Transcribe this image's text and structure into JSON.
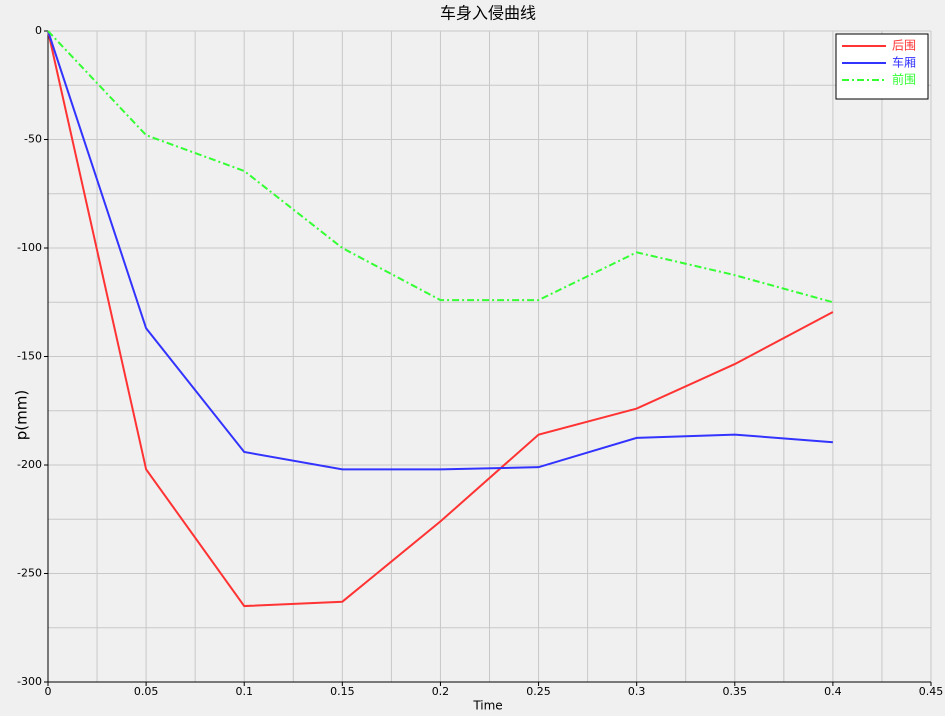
{
  "chart_data": {
    "type": "line",
    "title": "车身入侵曲线",
    "x_label": "Time",
    "y_label": "p(mm)",
    "x": [
      0,
      0.05,
      0.1,
      0.15,
      0.2,
      0.25,
      0.3,
      0.35,
      0.4
    ],
    "series": [
      {
        "name": "后围",
        "color": "#ff3333",
        "dash": "solid",
        "values": [
          0,
          -202,
          -265,
          -263,
          -226,
          -186,
          -174,
          -153.5,
          -129.5
        ]
      },
      {
        "name": "车厢",
        "color": "#3333ff",
        "dash": "solid",
        "values": [
          0,
          -137,
          -194,
          -202,
          -202,
          -201,
          -187.5,
          -186,
          -189.5
        ]
      },
      {
        "name": "前围",
        "color": "#33ff33",
        "dash": "dash-dot",
        "values": [
          0,
          -48,
          -64.5,
          -100,
          -124,
          -124,
          -102,
          -112.5,
          -125
        ]
      }
    ],
    "xlim": [
      0,
      0.45
    ],
    "xticks": [
      0,
      0.05,
      0.1,
      0.15,
      0.2,
      0.25,
      0.3,
      0.35,
      0.4,
      0.45
    ],
    "ylim": [
      -300,
      0
    ],
    "yticks": [
      -300,
      -250,
      -200,
      -150,
      -100,
      -50,
      0
    ],
    "grid": true,
    "legend_position": "top-right"
  }
}
